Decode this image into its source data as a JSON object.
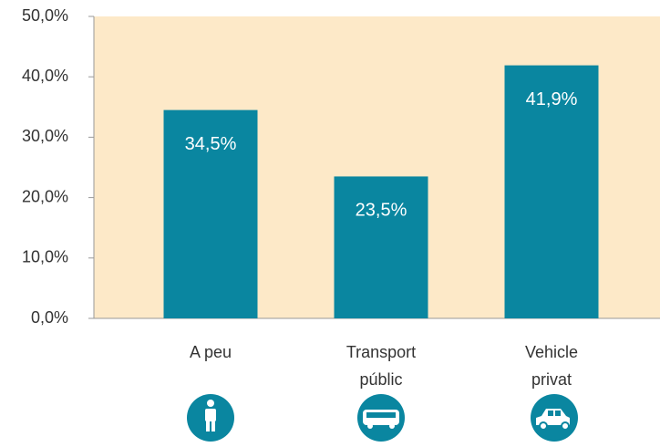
{
  "chart_data": {
    "type": "bar",
    "categories": [
      [
        "A peu"
      ],
      [
        "Transport",
        "públic"
      ],
      [
        "Vehicle",
        "privat"
      ]
    ],
    "values": [
      34.5,
      23.5,
      41.9
    ],
    "value_labels": [
      "34,5%",
      "23,5%",
      "41,9%"
    ],
    "color": "#0a86a0",
    "ylim": [
      0,
      50
    ],
    "yticks": [
      {
        "value": 0,
        "label": "0,0%"
      },
      {
        "value": 10,
        "label": "10,0%"
      },
      {
        "value": 20,
        "label": "20,0%"
      },
      {
        "value": 30,
        "label": "30,0%"
      },
      {
        "value": 40,
        "label": "40,0%"
      },
      {
        "value": 50,
        "label": "50,0%"
      }
    ],
    "grid": false
  }
}
